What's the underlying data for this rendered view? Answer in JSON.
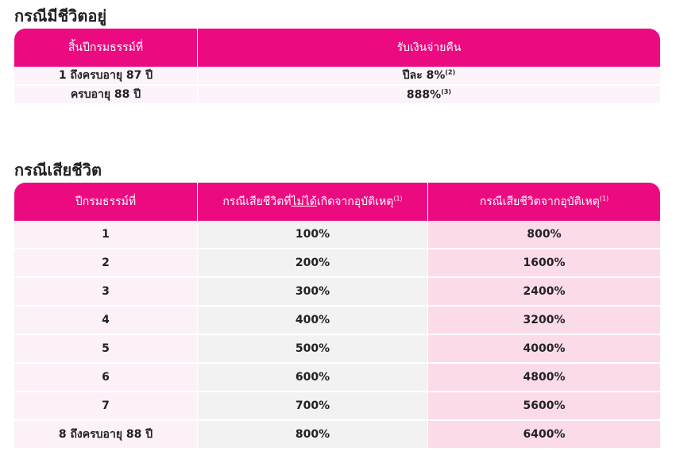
{
  "sections": [
    {
      "title": "กรณีมีชีวิตอยู่",
      "table": {
        "headers": [
          {
            "text": "สิ้นปีกรมธรรม์ที่"
          },
          {
            "text": "รับเงินจ่ายคืน"
          }
        ],
        "rows": [
          [
            {
              "text": "1 ถึงครบอายุ 87 ปี"
            },
            {
              "text": "ปีละ 8%",
              "sup": "(2)"
            }
          ],
          [
            {
              "text": "ครบอายุ 88 ปี"
            },
            {
              "text": "888%",
              "sup": "(3)"
            }
          ]
        ]
      }
    },
    {
      "title": "กรณีเสียชีวิต",
      "table": {
        "headers": [
          {
            "text": "ปีกรมธรรม์ที่"
          },
          {
            "text": "กรณีเสียชีวิตที่",
            "underlined": "ไม่ได้",
            "after": "เกิดจากอุบัติเหตุ",
            "sup": "(1)"
          },
          {
            "text": "กรณีเสียชีวิตจากอุบัติเหตุ",
            "sup": "(1)"
          }
        ],
        "rows": [
          [
            {
              "text": "1"
            },
            {
              "text": "100%"
            },
            {
              "text": "800%"
            }
          ],
          [
            {
              "text": "2"
            },
            {
              "text": "200%"
            },
            {
              "text": "1600%"
            }
          ],
          [
            {
              "text": "3"
            },
            {
              "text": "300%"
            },
            {
              "text": "2400%"
            }
          ],
          [
            {
              "text": "4"
            },
            {
              "text": "400%"
            },
            {
              "text": "3200%"
            }
          ],
          [
            {
              "text": "5"
            },
            {
              "text": "500%"
            },
            {
              "text": "4000%"
            }
          ],
          [
            {
              "text": "6"
            },
            {
              "text": "600%"
            },
            {
              "text": "4800%"
            }
          ],
          [
            {
              "text": "7"
            },
            {
              "text": "700%"
            },
            {
              "text": "5600%"
            }
          ],
          [
            {
              "text": "8 ถึงครบอายุ 88 ปี"
            },
            {
              "text": "800%"
            },
            {
              "text": "6400%"
            }
          ]
        ]
      }
    }
  ]
}
